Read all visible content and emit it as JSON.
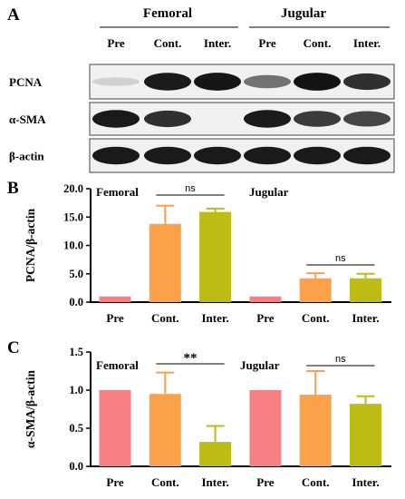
{
  "panels": {
    "a": {
      "letter": "A",
      "groups": [
        {
          "label": "Femoral"
        },
        {
          "label": "Jugular"
        }
      ],
      "lanes": [
        "Pre",
        "Cont.",
        "Inter.",
        "Pre",
        "Cont.",
        "Inter."
      ],
      "blots": [
        {
          "label": "PCNA",
          "intensities": [
            0.12,
            0.95,
            0.97,
            0.55,
            0.98,
            0.85
          ]
        },
        {
          "label": "α-SMA",
          "intensities": [
            0.95,
            0.85,
            0.0,
            0.95,
            0.8,
            0.75
          ]
        },
        {
          "label": "β-actin",
          "intensities": [
            0.95,
            0.95,
            0.95,
            0.95,
            0.95,
            0.95
          ]
        }
      ]
    },
    "b": {
      "letter": "B"
    },
    "c": {
      "letter": "C"
    }
  },
  "colors": {
    "Pre": "#f77f84",
    "Cont.": "#fba14a",
    "Inter.": "#bcbc14"
  },
  "chart_data": [
    {
      "type": "bar",
      "ylabel": "PCNA/β-actin",
      "ylim": [
        0,
        20
      ],
      "yticks": [
        "0.0",
        "5.0",
        "10.0",
        "15.0",
        "20.0"
      ],
      "group_labels": [
        "Femoral",
        "Jugular"
      ],
      "categories": [
        "Pre",
        "Cont.",
        "Inter.",
        "Pre",
        "Cont.",
        "Inter."
      ],
      "values": [
        1.0,
        13.8,
        15.9,
        1.0,
        4.2,
        4.2
      ],
      "errors": [
        0,
        3.2,
        0.6,
        0,
        0.9,
        0.8
      ],
      "annotations": [
        {
          "between": [
            1,
            2
          ],
          "text": "ns"
        },
        {
          "between": [
            4,
            5
          ],
          "text": "ns"
        }
      ]
    },
    {
      "type": "bar",
      "ylabel": "α-SMA/β-actin",
      "ylim": [
        0,
        1.5
      ],
      "yticks": [
        "0.0",
        "0.5",
        "1.0",
        "1.5"
      ],
      "group_labels": [
        "Femoral",
        "Jugular"
      ],
      "categories": [
        "Pre",
        "Cont.",
        "Inter.",
        "Pre",
        "Cont.",
        "Inter."
      ],
      "values": [
        1.0,
        0.95,
        0.32,
        1.0,
        0.94,
        0.82
      ],
      "errors": [
        0,
        0.28,
        0.21,
        0,
        0.31,
        0.1
      ],
      "annotations": [
        {
          "between": [
            1,
            2
          ],
          "text": "**"
        },
        {
          "between": [
            4,
            5
          ],
          "text": "ns"
        }
      ]
    }
  ]
}
